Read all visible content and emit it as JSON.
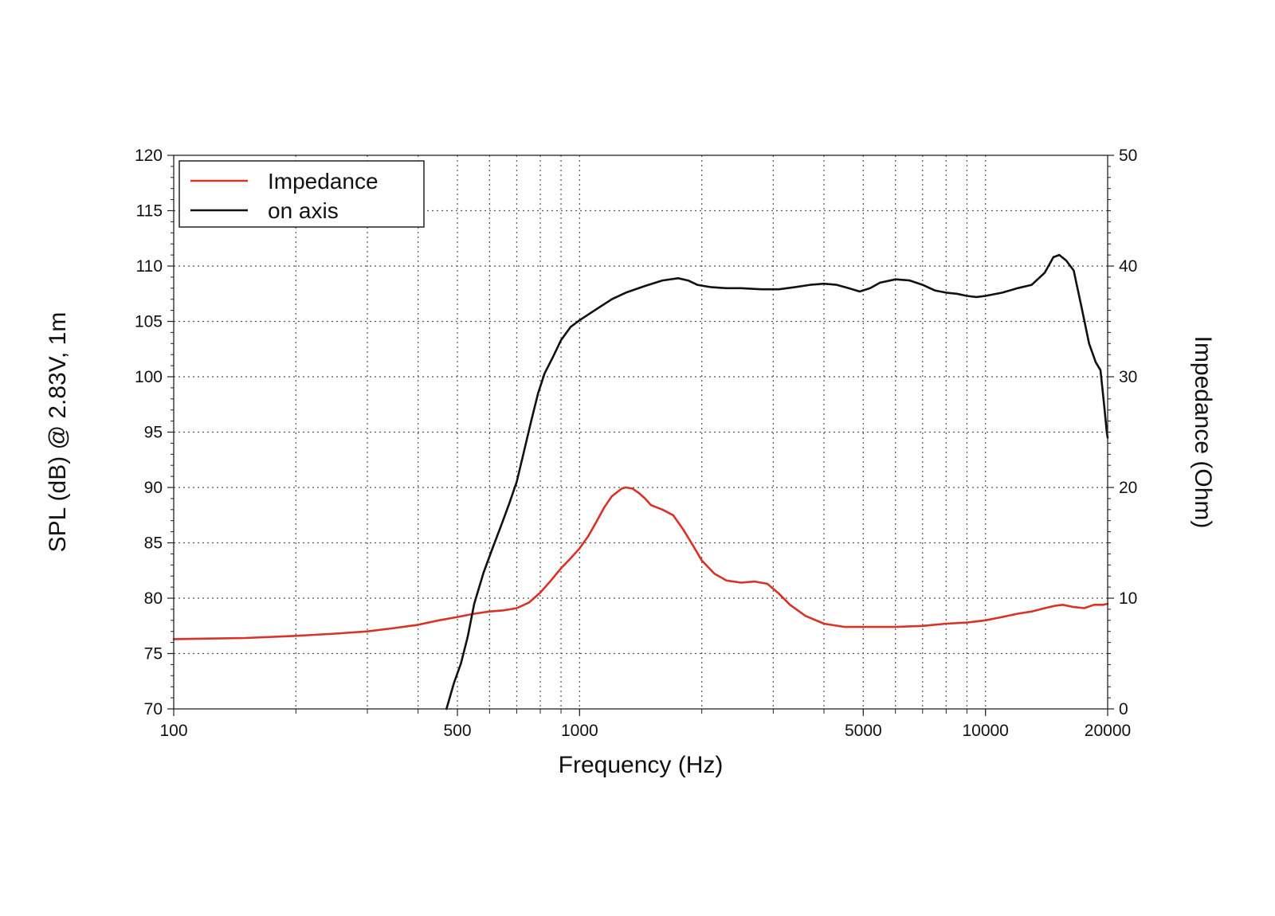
{
  "chart_data": {
    "type": "line",
    "xlabel": "Frequency (Hz)",
    "ylabel": "SPL (dB) @ 2.83V, 1m",
    "y2label": "Impedance (Ohm)",
    "x_scale": "log",
    "xlim": [
      100,
      20000
    ],
    "ylim": [
      70,
      120
    ],
    "y2lim": [
      0,
      50
    ],
    "grid": true,
    "legend_position": "top-left",
    "x_ticks": [
      {
        "value": 100,
        "label": "100"
      },
      {
        "value": 500,
        "label": "500"
      },
      {
        "value": 1000,
        "label": "1000"
      },
      {
        "value": 5000,
        "label": "5000"
      },
      {
        "value": 10000,
        "label": "10000"
      },
      {
        "value": 20000,
        "label": "20000"
      }
    ],
    "x_gridlines": [
      200,
      300,
      400,
      500,
      600,
      700,
      800,
      900,
      1000,
      2000,
      3000,
      4000,
      5000,
      6000,
      7000,
      8000,
      9000,
      10000
    ],
    "y_ticks": [
      {
        "value": 70,
        "label": "70"
      },
      {
        "value": 75,
        "label": "75"
      },
      {
        "value": 80,
        "label": "80"
      },
      {
        "value": 85,
        "label": "85"
      },
      {
        "value": 90,
        "label": "90"
      },
      {
        "value": 95,
        "label": "95"
      },
      {
        "value": 100,
        "label": "100"
      },
      {
        "value": 105,
        "label": "105"
      },
      {
        "value": 110,
        "label": "110"
      },
      {
        "value": 115,
        "label": "115"
      },
      {
        "value": 120,
        "label": "120"
      }
    ],
    "y2_ticks": [
      {
        "value": 0,
        "label": "0"
      },
      {
        "value": 10,
        "label": "10"
      },
      {
        "value": 20,
        "label": "20"
      },
      {
        "value": 30,
        "label": "30"
      },
      {
        "value": 40,
        "label": "40"
      },
      {
        "value": 50,
        "label": "50"
      }
    ],
    "series": [
      {
        "name": "Impedance",
        "axis": "right",
        "color": "#d93226",
        "points": [
          [
            100,
            6.3
          ],
          [
            150,
            6.4
          ],
          [
            200,
            6.6
          ],
          [
            250,
            6.8
          ],
          [
            300,
            7.0
          ],
          [
            350,
            7.3
          ],
          [
            400,
            7.6
          ],
          [
            450,
            8.0
          ],
          [
            500,
            8.3
          ],
          [
            550,
            8.6
          ],
          [
            600,
            8.8
          ],
          [
            650,
            8.9
          ],
          [
            700,
            9.1
          ],
          [
            750,
            9.6
          ],
          [
            800,
            10.5
          ],
          [
            850,
            11.6
          ],
          [
            900,
            12.7
          ],
          [
            950,
            13.6
          ],
          [
            1000,
            14.5
          ],
          [
            1050,
            15.6
          ],
          [
            1100,
            16.9
          ],
          [
            1150,
            18.2
          ],
          [
            1200,
            19.2
          ],
          [
            1270,
            19.9
          ],
          [
            1300,
            20.0
          ],
          [
            1350,
            19.9
          ],
          [
            1400,
            19.5
          ],
          [
            1450,
            19.0
          ],
          [
            1500,
            18.4
          ],
          [
            1600,
            18.0
          ],
          [
            1700,
            17.5
          ],
          [
            1800,
            16.2
          ],
          [
            1900,
            14.8
          ],
          [
            2000,
            13.4
          ],
          [
            2150,
            12.2
          ],
          [
            2300,
            11.6
          ],
          [
            2500,
            11.4
          ],
          [
            2700,
            11.5
          ],
          [
            2900,
            11.3
          ],
          [
            3100,
            10.4
          ],
          [
            3300,
            9.4
          ],
          [
            3600,
            8.4
          ],
          [
            4000,
            7.7
          ],
          [
            4500,
            7.4
          ],
          [
            5000,
            7.4
          ],
          [
            6000,
            7.4
          ],
          [
            7000,
            7.5
          ],
          [
            8000,
            7.7
          ],
          [
            9000,
            7.8
          ],
          [
            10000,
            8.0
          ],
          [
            11000,
            8.3
          ],
          [
            12000,
            8.6
          ],
          [
            13000,
            8.8
          ],
          [
            14000,
            9.1
          ],
          [
            14800,
            9.3
          ],
          [
            15500,
            9.4
          ],
          [
            16500,
            9.2
          ],
          [
            17500,
            9.1
          ],
          [
            18500,
            9.4
          ],
          [
            19500,
            9.4
          ],
          [
            20000,
            9.5
          ]
        ]
      },
      {
        "name": "on axis",
        "axis": "left",
        "color": "#111111",
        "points": [
          [
            470,
            70.0
          ],
          [
            490,
            72.3
          ],
          [
            510,
            74.1
          ],
          [
            530,
            76.5
          ],
          [
            550,
            79.5
          ],
          [
            580,
            82.3
          ],
          [
            610,
            84.5
          ],
          [
            640,
            86.5
          ],
          [
            670,
            88.5
          ],
          [
            700,
            90.5
          ],
          [
            730,
            93.3
          ],
          [
            760,
            96.0
          ],
          [
            790,
            98.5
          ],
          [
            820,
            100.3
          ],
          [
            860,
            101.8
          ],
          [
            900,
            103.3
          ],
          [
            950,
            104.5
          ],
          [
            1000,
            105.1
          ],
          [
            1100,
            106.1
          ],
          [
            1200,
            107.0
          ],
          [
            1300,
            107.6
          ],
          [
            1450,
            108.2
          ],
          [
            1600,
            108.7
          ],
          [
            1750,
            108.9
          ],
          [
            1850,
            108.7
          ],
          [
            1950,
            108.3
          ],
          [
            2100,
            108.1
          ],
          [
            2300,
            108.0
          ],
          [
            2500,
            108.0
          ],
          [
            2800,
            107.9
          ],
          [
            3100,
            107.9
          ],
          [
            3400,
            108.1
          ],
          [
            3700,
            108.3
          ],
          [
            4000,
            108.4
          ],
          [
            4300,
            108.3
          ],
          [
            4600,
            108.0
          ],
          [
            4900,
            107.7
          ],
          [
            5200,
            108.0
          ],
          [
            5500,
            108.5
          ],
          [
            6000,
            108.8
          ],
          [
            6500,
            108.7
          ],
          [
            7000,
            108.3
          ],
          [
            7500,
            107.8
          ],
          [
            8000,
            107.6
          ],
          [
            8500,
            107.5
          ],
          [
            9000,
            107.3
          ],
          [
            9500,
            107.2
          ],
          [
            10000,
            107.3
          ],
          [
            11000,
            107.6
          ],
          [
            12000,
            108.0
          ],
          [
            13000,
            108.3
          ],
          [
            14000,
            109.4
          ],
          [
            14700,
            110.8
          ],
          [
            15200,
            111.0
          ],
          [
            15800,
            110.5
          ],
          [
            16500,
            109.6
          ],
          [
            17200,
            106.5
          ],
          [
            18000,
            103.0
          ],
          [
            18700,
            101.3
          ],
          [
            19200,
            100.6
          ],
          [
            19600,
            97.5
          ],
          [
            19900,
            95.0
          ],
          [
            20000,
            94.5
          ]
        ]
      }
    ]
  }
}
